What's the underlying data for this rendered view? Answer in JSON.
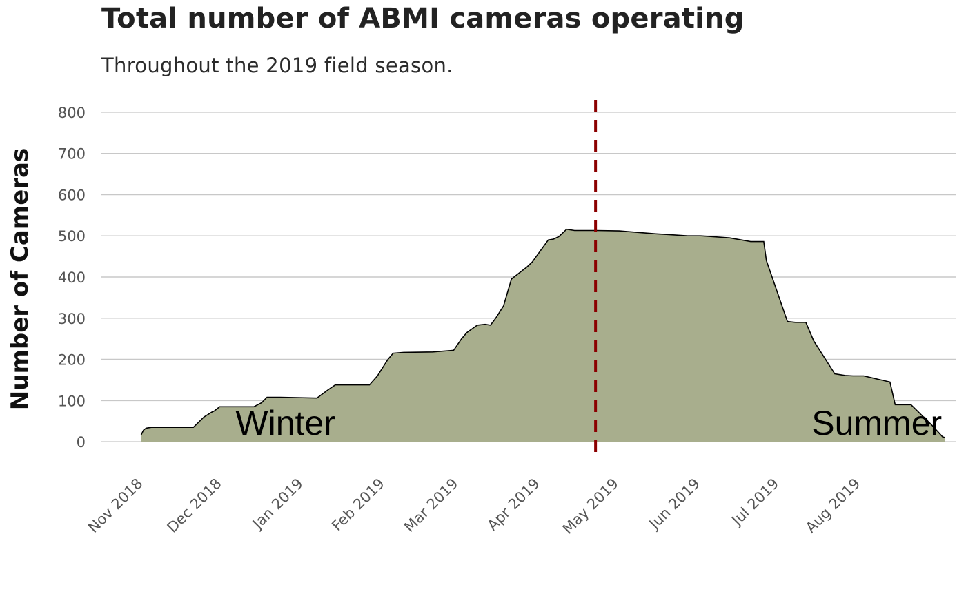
{
  "title": "Total number of ABMI cameras operating",
  "subtitle": "Throughout the 2019 field season.",
  "colors": {
    "area_fill": "#a8ae8d",
    "area_stroke": "#000000",
    "marker_line": "#8b0000",
    "grid": "#c8c8c8"
  },
  "chart_data": {
    "type": "area",
    "title": "Total number of ABMI cameras operating",
    "subtitle": "Throughout the 2019 field season.",
    "xlabel": "",
    "ylabel": "Number of Cameras",
    "ylim": [
      -40,
      830
    ],
    "xlim": [
      "2018-10-16",
      "2019-09-06"
    ],
    "yticks": [
      0,
      100,
      200,
      300,
      400,
      500,
      600,
      700,
      800
    ],
    "ytick_labels": [
      "0",
      "100",
      "200",
      "300",
      "400",
      "500",
      "600",
      "700",
      "800"
    ],
    "xticks": [
      "2018-11-01",
      "2018-12-01",
      "2019-01-01",
      "2019-02-01",
      "2019-03-01",
      "2019-04-01",
      "2019-05-01",
      "2019-06-01",
      "2019-07-01",
      "2019-08-01"
    ],
    "xtick_labels": [
      "Nov 2018",
      "Dec 2018",
      "Jan 2019",
      "Feb 2019",
      "Mar 2019",
      "Apr 2019",
      "May 2019",
      "Jun 2019",
      "Jul 2019",
      "Aug 2019"
    ],
    "grid": "horizontal",
    "vline": {
      "x": "2019-04-22",
      "style": "dashed",
      "color": "#8b0000"
    },
    "annotations": [
      {
        "text": "Winter",
        "x": "2018-12-25",
        "y": 45
      },
      {
        "text": "Summer",
        "x": "2019-08-07",
        "y": 45
      }
    ],
    "x": [
      "2018-10-31",
      "2018-11-01",
      "2018-11-02",
      "2018-11-04",
      "2018-11-20",
      "2018-11-24",
      "2018-11-27",
      "2018-11-28",
      "2018-11-30",
      "2018-12-13",
      "2018-12-16",
      "2018-12-18",
      "2018-12-23",
      "2019-01-06",
      "2019-01-10",
      "2019-01-13",
      "2019-01-26",
      "2019-01-29",
      "2019-02-02",
      "2019-02-04",
      "2019-02-08",
      "2019-02-19",
      "2019-02-27",
      "2019-03-02",
      "2019-03-04",
      "2019-03-08",
      "2019-03-11",
      "2019-03-13",
      "2019-03-15",
      "2019-03-18",
      "2019-03-21",
      "2019-03-24",
      "2019-03-27",
      "2019-03-29",
      "2019-04-04",
      "2019-04-06",
      "2019-04-08",
      "2019-04-11",
      "2019-04-14",
      "2019-04-22",
      "2019-05-01",
      "2019-05-05",
      "2019-05-15",
      "2019-05-20",
      "2019-05-27",
      "2019-06-01",
      "2019-06-12",
      "2019-06-20",
      "2019-06-25",
      "2019-06-26",
      "2019-07-04",
      "2019-07-07",
      "2019-07-11",
      "2019-07-14",
      "2019-07-22",
      "2019-07-26",
      "2019-07-29",
      "2019-08-02",
      "2019-08-12",
      "2019-08-14",
      "2019-08-18",
      "2019-08-20",
      "2019-08-28",
      "2019-09-01",
      "2019-09-02"
    ],
    "series": [
      {
        "name": "",
        "values": [
          15,
          28,
          33,
          35,
          35,
          60,
          72,
          75,
          85,
          85,
          95,
          108,
          108,
          106,
          125,
          138,
          138,
          160,
          200,
          215,
          217,
          218,
          222,
          250,
          265,
          283,
          285,
          283,
          300,
          330,
          395,
          410,
          425,
          437,
          490,
          492,
          498,
          516,
          513,
          513,
          512,
          510,
          505,
          503,
          500,
          500,
          495,
          486,
          486,
          440,
          292,
          290,
          290,
          245,
          165,
          161,
          160,
          160,
          145,
          90,
          90,
          90,
          40,
          12,
          10
        ]
      }
    ]
  }
}
